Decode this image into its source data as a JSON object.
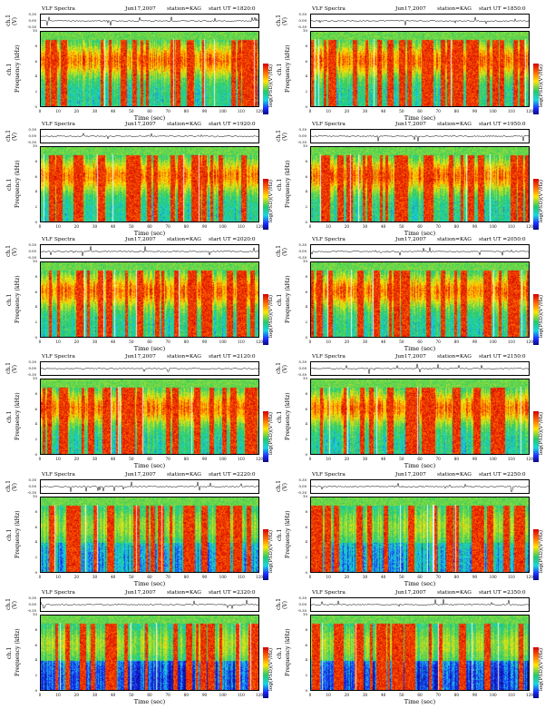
{
  "header": {
    "title": "VLF Spectra",
    "date": "Jun17,2007",
    "station": "station=KAG",
    "start_label": "start UT ="
  },
  "signal_axis": {
    "label": "ch.1 (V)",
    "ticks": [
      "0.30",
      "0.00",
      "-0.30"
    ]
  },
  "spectrogram_axis": {
    "ylabel_line1": "ch.1",
    "ylabel_line2": "Frequency (kHz)",
    "yticks": [
      "0",
      "2",
      "4",
      "6",
      "8",
      "10"
    ],
    "xticks": [
      "0",
      "10",
      "20",
      "30",
      "40",
      "50",
      "60",
      "70",
      "80",
      "90",
      "100",
      "110",
      "120"
    ],
    "xlabel": "Time (sec)",
    "colorbar_label": "log(PSD)(V²/Hz)"
  },
  "panels": [
    {
      "start_time": "1820:0"
    },
    {
      "start_time": "1850:0"
    },
    {
      "start_time": "1920:0"
    },
    {
      "start_time": "1950:0"
    },
    {
      "start_time": "2020:0"
    },
    {
      "start_time": "2050:0"
    },
    {
      "start_time": "2120:0"
    },
    {
      "start_time": "2150:0"
    },
    {
      "start_time": "2220:0"
    },
    {
      "start_time": "2250:0"
    },
    {
      "start_time": "2320:0"
    },
    {
      "start_time": "2350:0"
    }
  ],
  "colors": {
    "high": "#d40000",
    "mid_high": "#ff6a00",
    "mid": "#ffe600",
    "mid_low": "#22c96a",
    "low": "#1ad5e0",
    "very_low": "#1a2bff"
  },
  "chart_data": [
    {
      "type": "heatmap",
      "x_range": [
        0,
        120
      ],
      "y_range": [
        0,
        10
      ],
      "xlabel": "Time (sec)",
      "ylabel": "Frequency (kHz)",
      "start_time": "1820:0"
    },
    {
      "type": "heatmap",
      "x_range": [
        0,
        120
      ],
      "y_range": [
        0,
        10
      ],
      "xlabel": "Time (sec)",
      "ylabel": "Frequency (kHz)",
      "start_time": "1850:0"
    },
    {
      "type": "heatmap",
      "x_range": [
        0,
        120
      ],
      "y_range": [
        0,
        10
      ],
      "xlabel": "Time (sec)",
      "ylabel": "Frequency (kHz)",
      "start_time": "1920:0"
    },
    {
      "type": "heatmap",
      "x_range": [
        0,
        120
      ],
      "y_range": [
        0,
        10
      ],
      "xlabel": "Time (sec)",
      "ylabel": "Frequency (kHz)",
      "start_time": "1950:0"
    },
    {
      "type": "heatmap",
      "x_range": [
        0,
        120
      ],
      "y_range": [
        0,
        10
      ],
      "xlabel": "Time (sec)",
      "ylabel": "Frequency (kHz)",
      "start_time": "2020:0"
    },
    {
      "type": "heatmap",
      "x_range": [
        0,
        120
      ],
      "y_range": [
        0,
        10
      ],
      "xlabel": "Time (sec)",
      "ylabel": "Frequency (kHz)",
      "start_time": "2050:0"
    },
    {
      "type": "heatmap",
      "x_range": [
        0,
        120
      ],
      "y_range": [
        0,
        10
      ],
      "xlabel": "Time (sec)",
      "ylabel": "Frequency (kHz)",
      "start_time": "2120:0"
    },
    {
      "type": "heatmap",
      "x_range": [
        0,
        120
      ],
      "y_range": [
        0,
        10
      ],
      "xlabel": "Time (sec)",
      "ylabel": "Frequency (kHz)",
      "start_time": "2150:0"
    },
    {
      "type": "heatmap",
      "x_range": [
        0,
        120
      ],
      "y_range": [
        0,
        10
      ],
      "xlabel": "Time (sec)",
      "ylabel": "Frequency (kHz)",
      "start_time": "2220:0"
    },
    {
      "type": "heatmap",
      "x_range": [
        0,
        120
      ],
      "y_range": [
        0,
        10
      ],
      "xlabel": "Time (sec)",
      "ylabel": "Frequency (kHz)",
      "start_time": "2250:0"
    },
    {
      "type": "heatmap",
      "x_range": [
        0,
        120
      ],
      "y_range": [
        0,
        10
      ],
      "xlabel": "Time (sec)",
      "ylabel": "Frequency (kHz)",
      "start_time": "2320:0"
    },
    {
      "type": "heatmap",
      "x_range": [
        0,
        120
      ],
      "y_range": [
        0,
        10
      ],
      "xlabel": "Time (sec)",
      "ylabel": "Frequency (kHz)",
      "start_time": "2350:0"
    }
  ]
}
